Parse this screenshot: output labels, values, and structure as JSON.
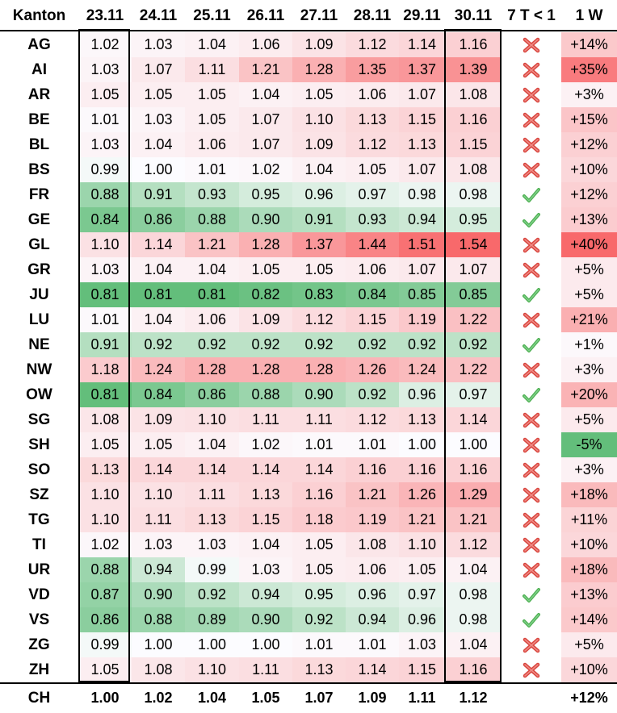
{
  "headers": [
    "Kanton",
    "23.11",
    "24.11",
    "25.11",
    "26.11",
    "27.11",
    "28.11",
    "29.11",
    "30.11",
    "7 T < 1",
    "1 W"
  ],
  "rows": [
    {
      "k": "AG",
      "v": [
        "1.02",
        "1.03",
        "1.04",
        "1.06",
        "1.09",
        "1.12",
        "1.14",
        "1.16"
      ],
      "ok": false,
      "w": "+14%",
      "wv": 14
    },
    {
      "k": "AI",
      "v": [
        "1.03",
        "1.07",
        "1.11",
        "1.21",
        "1.28",
        "1.35",
        "1.37",
        "1.39"
      ],
      "ok": false,
      "w": "+35%",
      "wv": 35
    },
    {
      "k": "AR",
      "v": [
        "1.05",
        "1.05",
        "1.05",
        "1.04",
        "1.05",
        "1.06",
        "1.07",
        "1.08"
      ],
      "ok": false,
      "w": "+3%",
      "wv": 3
    },
    {
      "k": "BE",
      "v": [
        "1.01",
        "1.03",
        "1.05",
        "1.07",
        "1.10",
        "1.13",
        "1.15",
        "1.16"
      ],
      "ok": false,
      "w": "+15%",
      "wv": 15
    },
    {
      "k": "BL",
      "v": [
        "1.03",
        "1.04",
        "1.06",
        "1.07",
        "1.09",
        "1.12",
        "1.13",
        "1.15"
      ],
      "ok": false,
      "w": "+12%",
      "wv": 12
    },
    {
      "k": "BS",
      "v": [
        "0.99",
        "1.00",
        "1.01",
        "1.02",
        "1.04",
        "1.05",
        "1.07",
        "1.08"
      ],
      "ok": false,
      "w": "+10%",
      "wv": 10
    },
    {
      "k": "FR",
      "v": [
        "0.88",
        "0.91",
        "0.93",
        "0.95",
        "0.96",
        "0.97",
        "0.98",
        "0.98"
      ],
      "ok": true,
      "w": "+12%",
      "wv": 12
    },
    {
      "k": "GE",
      "v": [
        "0.84",
        "0.86",
        "0.88",
        "0.90",
        "0.91",
        "0.93",
        "0.94",
        "0.95"
      ],
      "ok": true,
      "w": "+13%",
      "wv": 13
    },
    {
      "k": "GL",
      "v": [
        "1.10",
        "1.14",
        "1.21",
        "1.28",
        "1.37",
        "1.44",
        "1.51",
        "1.54"
      ],
      "ok": false,
      "w": "+40%",
      "wv": 40
    },
    {
      "k": "GR",
      "v": [
        "1.03",
        "1.04",
        "1.04",
        "1.05",
        "1.05",
        "1.06",
        "1.07",
        "1.07"
      ],
      "ok": false,
      "w": "+5%",
      "wv": 5
    },
    {
      "k": "JU",
      "v": [
        "0.81",
        "0.81",
        "0.81",
        "0.82",
        "0.83",
        "0.84",
        "0.85",
        "0.85"
      ],
      "ok": true,
      "w": "+5%",
      "wv": 5
    },
    {
      "k": "LU",
      "v": [
        "1.01",
        "1.04",
        "1.06",
        "1.09",
        "1.12",
        "1.15",
        "1.19",
        "1.22"
      ],
      "ok": false,
      "w": "+21%",
      "wv": 21
    },
    {
      "k": "NE",
      "v": [
        "0.91",
        "0.92",
        "0.92",
        "0.92",
        "0.92",
        "0.92",
        "0.92",
        "0.92"
      ],
      "ok": true,
      "w": "+1%",
      "wv": 1
    },
    {
      "k": "NW",
      "v": [
        "1.18",
        "1.24",
        "1.28",
        "1.28",
        "1.28",
        "1.26",
        "1.24",
        "1.22"
      ],
      "ok": false,
      "w": "+3%",
      "wv": 3
    },
    {
      "k": "OW",
      "v": [
        "0.81",
        "0.84",
        "0.86",
        "0.88",
        "0.90",
        "0.92",
        "0.96",
        "0.97"
      ],
      "ok": true,
      "w": "+20%",
      "wv": 20
    },
    {
      "k": "SG",
      "v": [
        "1.08",
        "1.09",
        "1.10",
        "1.11",
        "1.11",
        "1.12",
        "1.13",
        "1.14"
      ],
      "ok": false,
      "w": "+5%",
      "wv": 5
    },
    {
      "k": "SH",
      "v": [
        "1.05",
        "1.05",
        "1.04",
        "1.02",
        "1.01",
        "1.01",
        "1.00",
        "1.00"
      ],
      "ok": false,
      "w": "-5%",
      "wv": -5
    },
    {
      "k": "SO",
      "v": [
        "1.13",
        "1.14",
        "1.14",
        "1.14",
        "1.14",
        "1.16",
        "1.16",
        "1.16"
      ],
      "ok": false,
      "w": "+3%",
      "wv": 3
    },
    {
      "k": "SZ",
      "v": [
        "1.10",
        "1.10",
        "1.11",
        "1.13",
        "1.16",
        "1.21",
        "1.26",
        "1.29"
      ],
      "ok": false,
      "w": "+18%",
      "wv": 18
    },
    {
      "k": "TG",
      "v": [
        "1.10",
        "1.11",
        "1.13",
        "1.15",
        "1.18",
        "1.19",
        "1.21",
        "1.21"
      ],
      "ok": false,
      "w": "+11%",
      "wv": 11
    },
    {
      "k": "TI",
      "v": [
        "1.02",
        "1.03",
        "1.03",
        "1.04",
        "1.05",
        "1.08",
        "1.10",
        "1.12"
      ],
      "ok": false,
      "w": "+10%",
      "wv": 10
    },
    {
      "k": "UR",
      "v": [
        "0.88",
        "0.94",
        "0.99",
        "1.03",
        "1.05",
        "1.06",
        "1.05",
        "1.04"
      ],
      "ok": false,
      "w": "+18%",
      "wv": 18
    },
    {
      "k": "VD",
      "v": [
        "0.87",
        "0.90",
        "0.92",
        "0.94",
        "0.95",
        "0.96",
        "0.97",
        "0.98"
      ],
      "ok": true,
      "w": "+13%",
      "wv": 13
    },
    {
      "k": "VS",
      "v": [
        "0.86",
        "0.88",
        "0.89",
        "0.90",
        "0.92",
        "0.94",
        "0.96",
        "0.98"
      ],
      "ok": true,
      "w": "+14%",
      "wv": 14
    },
    {
      "k": "ZG",
      "v": [
        "0.99",
        "1.00",
        "1.00",
        "1.00",
        "1.01",
        "1.01",
        "1.03",
        "1.04"
      ],
      "ok": false,
      "w": "+5%",
      "wv": 5
    },
    {
      "k": "ZH",
      "v": [
        "1.05",
        "1.08",
        "1.10",
        "1.11",
        "1.13",
        "1.14",
        "1.15",
        "1.16"
      ],
      "ok": false,
      "w": "+10%",
      "wv": 10
    }
  ],
  "total": {
    "k": "CH",
    "v": [
      "1.00",
      "1.02",
      "1.04",
      "1.05",
      "1.07",
      "1.09",
      "1.11",
      "1.12"
    ],
    "w": "+12%"
  },
  "icons": {
    "ok": "check-icon",
    "no": "cross-icon"
  },
  "colors": {
    "green": "#63be7b",
    "red": "#f8696b",
    "white": "#fcfcff",
    "check": "#4caf50",
    "cross": "#e0504a"
  }
}
